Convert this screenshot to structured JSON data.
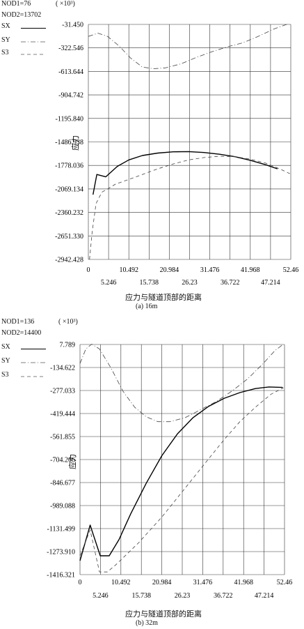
{
  "chart_data": [
    {
      "type": "line",
      "header": {
        "nod1": "NOD1=76",
        "nod2": "NOD2=13702",
        "scale": "( ×10³)"
      },
      "ylabel": "应力",
      "xlabel": "应力与隧道顶部的距离",
      "caption": "(a) 16m",
      "yticks": [
        "-31.450",
        "-322.546",
        "-613.644",
        "-904.742",
        "-1195.840",
        "-1486.938",
        "-1778.036",
        "-2069.134",
        "-2360.232",
        "-2651.330",
        "-2942.428"
      ],
      "ylim": [
        -2942.428,
        -31.45
      ],
      "xticks_upper": [
        "0",
        "10.492",
        "20.984",
        "31.476",
        "41.968",
        "52.46"
      ],
      "xticks_lower": [
        "5.246",
        "15.738",
        "26.23",
        "36.722",
        "47.214"
      ],
      "xlim": [
        0,
        52.46
      ],
      "grid": true,
      "legend": [
        "SX",
        "SY",
        "S3"
      ],
      "series": [
        {
          "name": "SX",
          "style": "solid",
          "x": [
            1.2,
            2.2,
            4.5,
            7.5,
            10.5,
            14.0,
            18.0,
            22.0,
            26.0,
            30.0,
            34.0,
            38.0,
            42.0,
            46.0,
            49.0
          ],
          "y": [
            -2140,
            -1890,
            -1920,
            -1790,
            -1710,
            -1655,
            -1625,
            -1610,
            -1607,
            -1618,
            -1640,
            -1670,
            -1715,
            -1770,
            -1820
          ]
        },
        {
          "name": "SY",
          "style": "dashdot",
          "x": [
            0,
            2.5,
            5.0,
            8.0,
            11.0,
            14.0,
            17.0,
            20.0,
            24.0,
            28.0,
            32.0,
            36.0,
            40.0,
            44.0,
            48.0,
            51.5
          ],
          "y": [
            -180,
            -140,
            -180,
            -300,
            -450,
            -560,
            -580,
            -570,
            -520,
            -440,
            -370,
            -310,
            -260,
            -180,
            -90,
            -30
          ]
        },
        {
          "name": "S3",
          "style": "dashed",
          "x": [
            0.3,
            1.0,
            2.0,
            3.5,
            5.0,
            7.0,
            10.0,
            14.0,
            18.0,
            22.0,
            26.0,
            30.0,
            34.0,
            38.0,
            42.0,
            46.0,
            50.0,
            52.2
          ],
          "y": [
            -2942,
            -2600,
            -2250,
            -2110,
            -2070,
            -2010,
            -1960,
            -1890,
            -1820,
            -1760,
            -1710,
            -1680,
            -1665,
            -1670,
            -1700,
            -1750,
            -1830,
            -1880
          ]
        }
      ]
    },
    {
      "type": "line",
      "header": {
        "nod1": "NOD1=136",
        "nod2": "NOD2=14400",
        "scale": "( ×10³)"
      },
      "ylabel": "应力",
      "xlabel": "应力与隧道顶部的距离",
      "caption": "(b) 32m",
      "yticks": [
        "7.789",
        "-134.622",
        "-277.033",
        "-419.444",
        "-561.855",
        "-704.266",
        "-846.677",
        "-989.088",
        "-1131.499",
        "-1273.910",
        "-1416.321"
      ],
      "ylim": [
        -1416.321,
        7.789
      ],
      "xticks_upper": [
        "0",
        "10.492",
        "20.984",
        "31.476",
        "41.968",
        "52.46"
      ],
      "xticks_lower": [
        "5.246",
        "15.738",
        "26.23",
        "36.722",
        "47.214"
      ],
      "xlim": [
        0,
        52.46
      ],
      "grid": true,
      "legend": [
        "SX",
        "SY",
        "S3"
      ],
      "series": [
        {
          "name": "SX",
          "style": "solid",
          "x": [
            0,
            2.6,
            5.2,
            7.5,
            10.0,
            13.0,
            17.0,
            21.0,
            25.0,
            29.0,
            33.0,
            37.0,
            41.0,
            45.0,
            48.5,
            52.0
          ],
          "y": [
            -1330,
            -1110,
            -1300,
            -1300,
            -1200,
            -1040,
            -850,
            -680,
            -545,
            -445,
            -375,
            -325,
            -290,
            -265,
            -255,
            -258
          ]
        },
        {
          "name": "SY",
          "style": "dashdot",
          "x": [
            0,
            1.5,
            3.0,
            5.0,
            8.0,
            11.0,
            14.0,
            17.0,
            20.0,
            23.0,
            27.0,
            31.0,
            35.0,
            39.0,
            43.0,
            47.0,
            50.0,
            52.2
          ],
          "y": [
            -110,
            -20,
            10,
            -20,
            -140,
            -280,
            -380,
            -440,
            -470,
            -470,
            -445,
            -395,
            -345,
            -280,
            -205,
            -110,
            -30,
            10
          ]
        },
        {
          "name": "S3",
          "style": "dashed",
          "x": [
            0,
            2.6,
            5.0,
            7.0,
            9.0,
            12.0,
            15.0,
            18.0,
            21.0,
            25.0,
            29.0,
            33.0,
            37.0,
            41.0,
            45.0,
            49.0,
            52.2
          ],
          "y": [
            -1300,
            -1140,
            -1400,
            -1400,
            -1360,
            -1290,
            -1220,
            -1140,
            -1060,
            -940,
            -820,
            -700,
            -580,
            -470,
            -380,
            -300,
            -260
          ]
        }
      ]
    }
  ]
}
